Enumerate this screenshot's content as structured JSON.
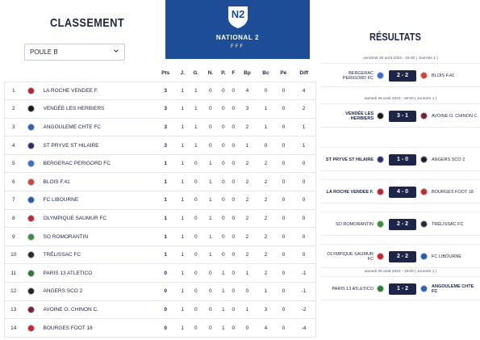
{
  "standings": {
    "title": "CLASSEMENT",
    "poule": "POULE B",
    "headers": [
      "Pts",
      "J.",
      "G.",
      "N.",
      "P.",
      "F",
      "Bp",
      "Bc",
      "Pé",
      "Diff"
    ],
    "rows": [
      {
        "rank": "1",
        "team": "LA ROCHE VENDEE F.",
        "stats": [
          "3",
          "1",
          "1",
          "0",
          "0",
          "0",
          "4",
          "0",
          "0",
          "4"
        ],
        "color": "#c0222b"
      },
      {
        "rank": "2",
        "team": "VENDÉE LES HERBIERS",
        "stats": [
          "3",
          "1",
          "1",
          "0",
          "0",
          "0",
          "3",
          "1",
          "0",
          "2"
        ],
        "color": "#1a1a1a"
      },
      {
        "rank": "3",
        "team": "ANGOULEME CHTE FC",
        "stats": [
          "3",
          "1",
          "1",
          "0",
          "0",
          "0",
          "2",
          "1",
          "0",
          "1"
        ],
        "color": "#2e64b6"
      },
      {
        "rank": "4",
        "team": "ST PRYVE ST HILAIRE",
        "stats": [
          "3",
          "1",
          "1",
          "0",
          "0",
          "0",
          "1",
          "0",
          "0",
          "1"
        ],
        "color": "#2b2f66"
      },
      {
        "rank": "5",
        "team": "BERGERAC PERIGORD FC",
        "stats": [
          "1",
          "1",
          "0",
          "1",
          "0",
          "0",
          "2",
          "2",
          "0",
          "0"
        ],
        "color": "#3b6fcc"
      },
      {
        "rank": "6",
        "team": "BLOIS F.41",
        "stats": [
          "1",
          "1",
          "0",
          "1",
          "0",
          "0",
          "2",
          "2",
          "0",
          "0"
        ],
        "color": "#d8412f"
      },
      {
        "rank": "7",
        "team": "FC LIBOURNE",
        "stats": [
          "1",
          "1",
          "0",
          "1",
          "0",
          "0",
          "2",
          "2",
          "0",
          "0"
        ],
        "color": "#1d5fb0"
      },
      {
        "rank": "8",
        "team": "OLYMPIQUE SAUMUR FC",
        "stats": [
          "1",
          "1",
          "0",
          "1",
          "0",
          "0",
          "2",
          "2",
          "0",
          "0"
        ],
        "color": "#c8242c"
      },
      {
        "rank": "9",
        "team": "SO ROMORANTIN",
        "stats": [
          "1",
          "1",
          "0",
          "1",
          "0",
          "0",
          "2",
          "2",
          "0",
          "0"
        ],
        "color": "#3c8f3c"
      },
      {
        "rank": "10",
        "team": "TRÉLISSAC FC",
        "stats": [
          "1",
          "1",
          "0",
          "1",
          "0",
          "0",
          "2",
          "2",
          "0",
          "0"
        ],
        "color": "#2a2a2a"
      },
      {
        "rank": "11",
        "team": "PARIS 13 ATLETICO",
        "stats": [
          "0",
          "1",
          "0",
          "0",
          "1",
          "0",
          "1",
          "2",
          "0",
          "-1"
        ],
        "color": "#2e7d32"
      },
      {
        "rank": "12",
        "team": "ANGERS SCO 2",
        "stats": [
          "0",
          "1",
          "0",
          "0",
          "1",
          "0",
          "0",
          "1",
          "0",
          "-1"
        ],
        "color": "#222222"
      },
      {
        "rank": "13",
        "team": "AVOINE O. CHINON C.",
        "stats": [
          "0",
          "1",
          "0",
          "0",
          "1",
          "0",
          "1",
          "3",
          "0",
          "-2"
        ],
        "color": "#7a2030"
      },
      {
        "rank": "14",
        "team": "BOURGES FOOT 18",
        "stats": [
          "0",
          "1",
          "0",
          "0",
          "1",
          "0",
          "0",
          "4",
          "0",
          "-4"
        ],
        "color": "#c62828"
      }
    ]
  },
  "banner": {
    "badge": "N2",
    "name": "NATIONAL 2",
    "federation": "FFF",
    "bg": "#1d4d96"
  },
  "results": {
    "title": "RÉSULTATS",
    "items": [
      {
        "date": "vendredi 25 août 2023 - 19:30 ( Journée 1 )",
        "home": "BERGERAC PERIGORD FC",
        "home_bold": false,
        "score": "2 - 2",
        "away": "BLOIS F.41",
        "away_bold": false,
        "hc": "#3b6fcc",
        "ac": "#d8412f"
      },
      {
        "date": "samedi 26 août 2023 - 18:00 ( Journée 1 )",
        "home": "VENDÉE LES HERBIERS",
        "home_bold": true,
        "score": "3 - 1",
        "away": "AVOINE O. CHINON C.",
        "away_bold": false,
        "hc": "#1a1a1a",
        "ac": "#7a2030"
      },
      {
        "date": "",
        "home": "ST PRYVE ST HILAIRE",
        "home_bold": true,
        "score": "1 - 0",
        "away": "ANGERS SCO 2",
        "away_bold": false,
        "hc": "#2b2f66",
        "ac": "#222222"
      },
      {
        "date": "",
        "home": "LA ROCHE VENDEE F.",
        "home_bold": true,
        "score": "4 - 0",
        "away": "BOURGES FOOT 18",
        "away_bold": false,
        "hc": "#c0222b",
        "ac": "#c62828"
      },
      {
        "date": "",
        "home": "SO ROMORANTIN",
        "home_bold": false,
        "score": "2 - 2",
        "away": "TRÉLISSAC FC",
        "away_bold": false,
        "hc": "#3c8f3c",
        "ac": "#2a2a2a"
      },
      {
        "date": "",
        "home": "OLYMPIQUE SAUMUR FC",
        "home_bold": false,
        "score": "2 - 2",
        "away": "FC LIBOURNE",
        "away_bold": false,
        "hc": "#c8242c",
        "ac": "#1d5fb0"
      },
      {
        "date": "samedi 26 août 2023 - 19:00 ( Journée 1 )",
        "home": "PARIS 13 ATLETICO",
        "home_bold": false,
        "score": "1 - 2",
        "away": "ANGOULEME CHTE FC",
        "away_bold": true,
        "hc": "#2e7d32",
        "ac": "#2e64b6"
      }
    ]
  }
}
